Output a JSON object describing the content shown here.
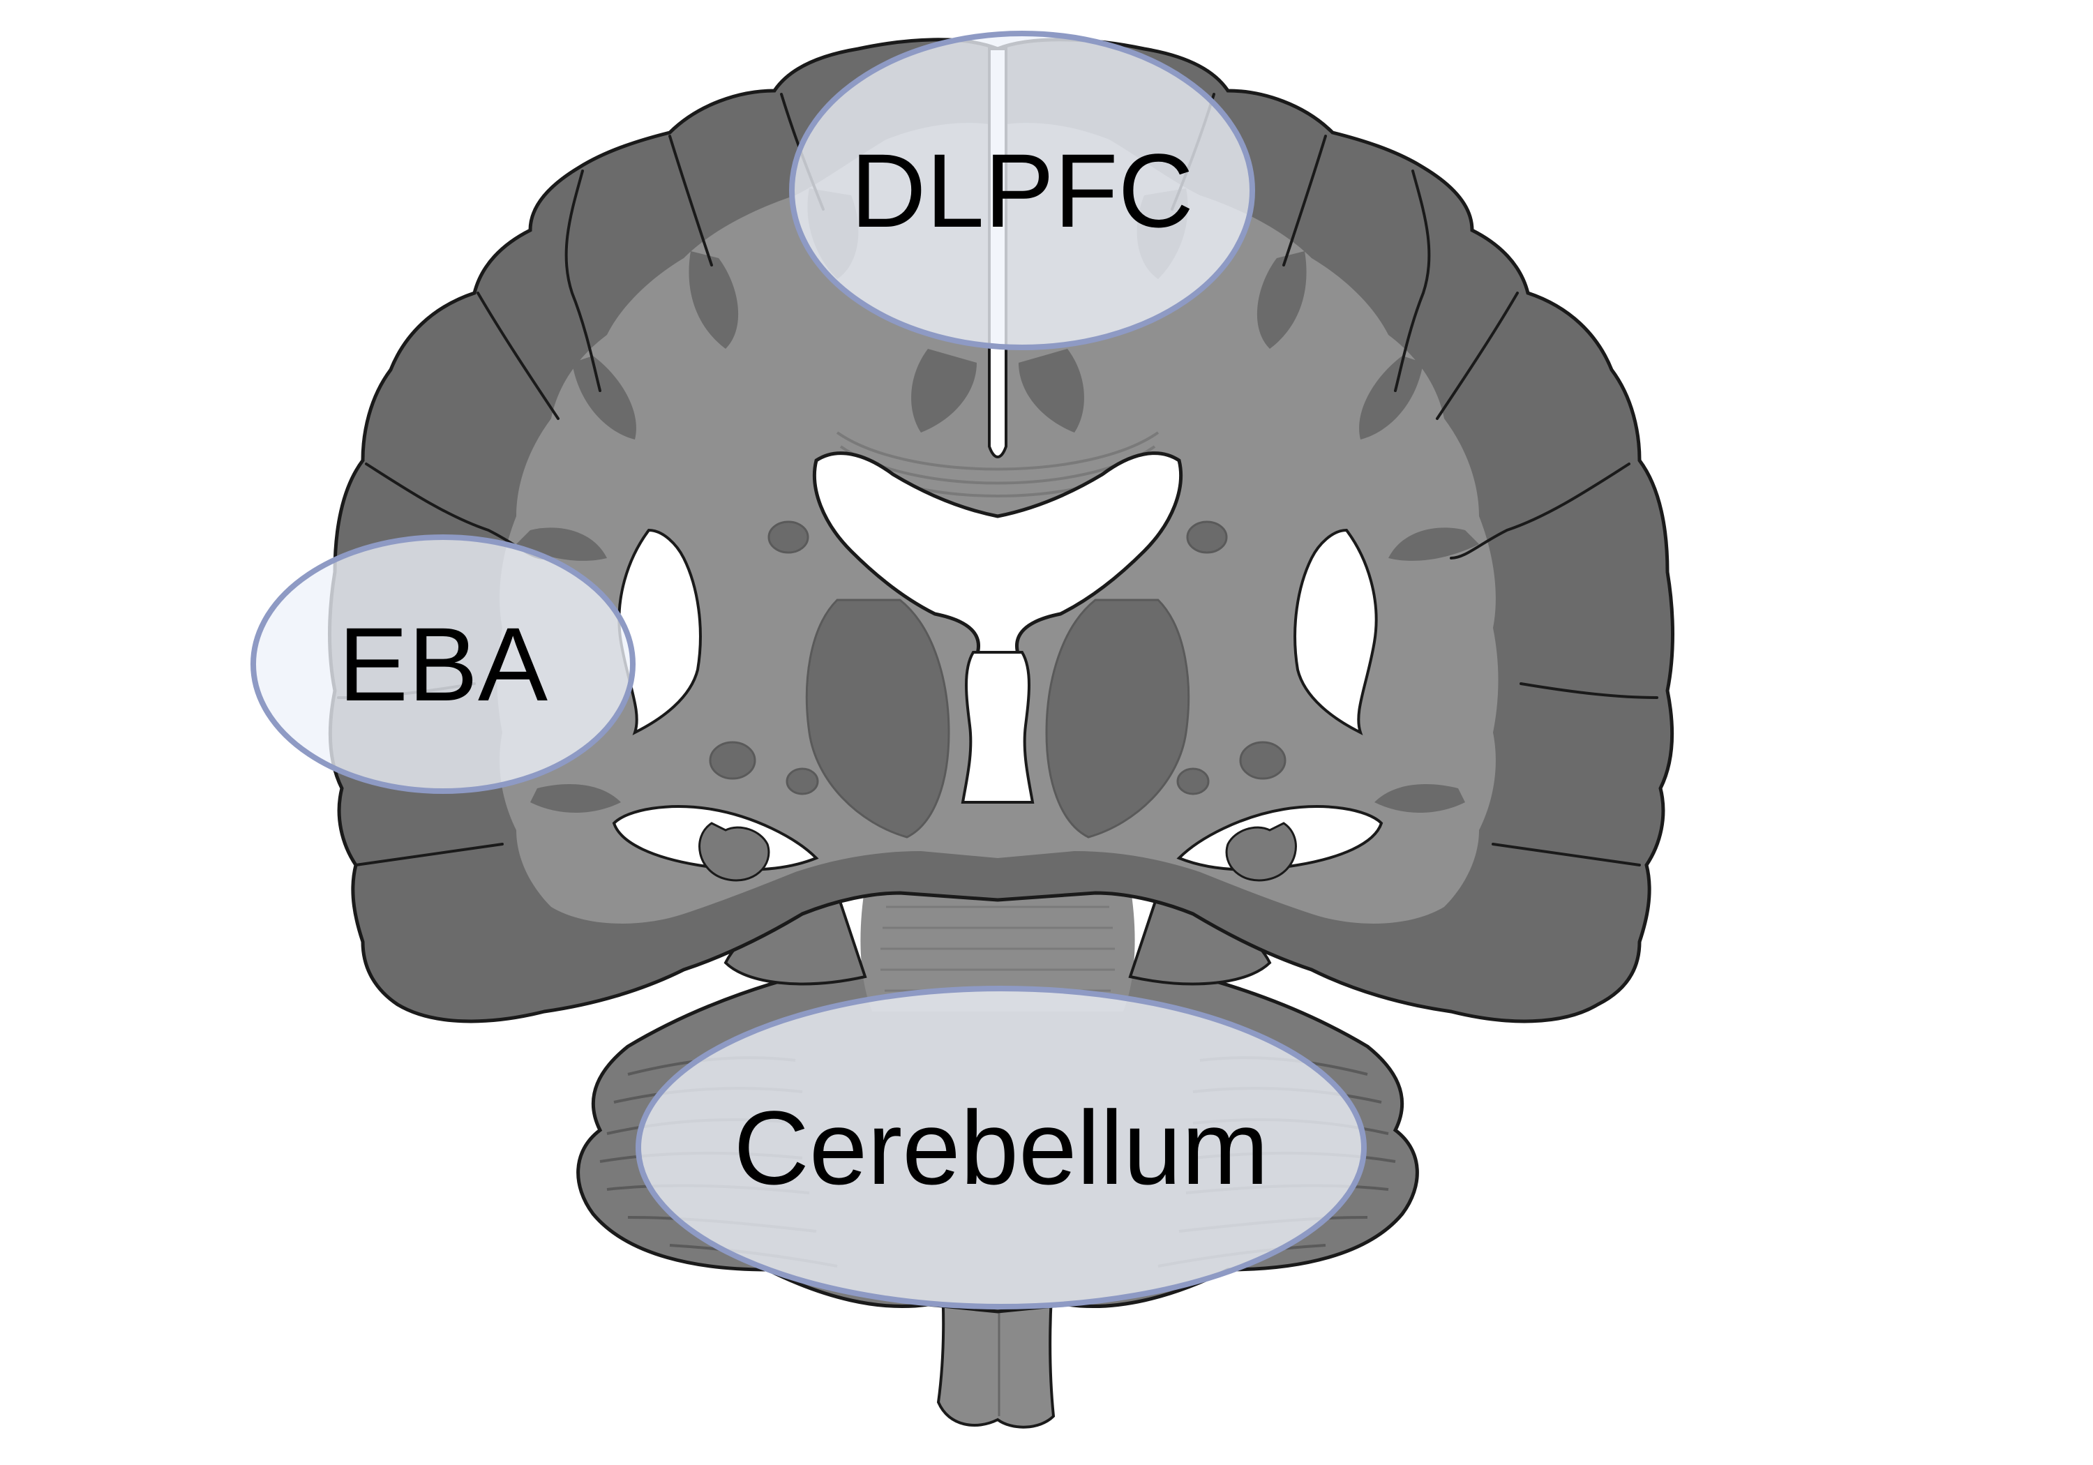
{
  "diagram": {
    "subject": "coronal-brain-section",
    "regions": [
      {
        "id": "dlpfc",
        "label": "DLPFC"
      },
      {
        "id": "eba",
        "label": "EBA"
      },
      {
        "id": "cerebellum",
        "label": "Cerebellum"
      }
    ]
  },
  "colors": {
    "gray_matter": "#6b6b6b",
    "white_matter": "#909090",
    "outline": "#1a1a1a",
    "ventricle": "#ffffff",
    "highlight_fill": "#eef2fa",
    "highlight_stroke": "#8e9ac4",
    "label_text": "#000000"
  }
}
